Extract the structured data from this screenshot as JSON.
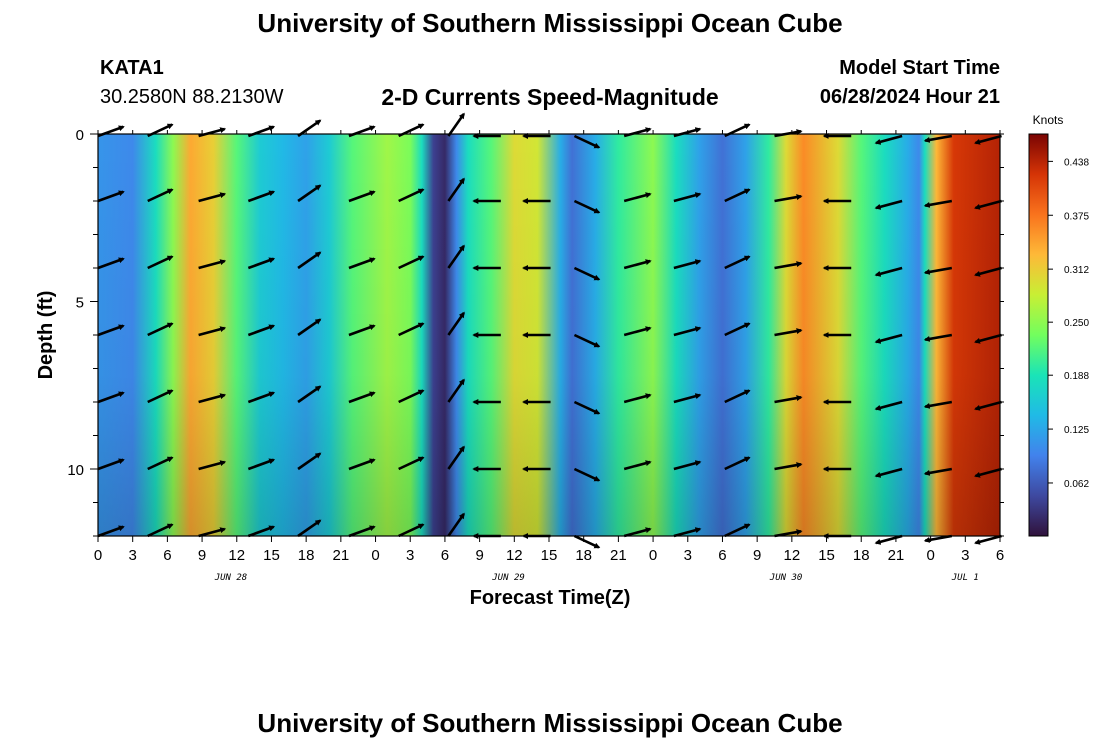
{
  "header": {
    "title": "University of Southern Mississippi Ocean Cube",
    "station_id": "KATA1",
    "station_coords": "30.2580N  88.2130W",
    "chart_title": "2-D Currents Speed-Magnitude",
    "model_label": "Model Start Time",
    "model_time": "06/28/2024 Hour 21"
  },
  "footer": {
    "title": "University of Southern Mississippi Ocean Cube"
  },
  "chart_data": {
    "type": "heatmap",
    "title": "2-D Currents Speed-Magnitude",
    "xlabel": "Forecast Time(Z)",
    "ylabel": "Depth (ft)",
    "x_range_hours": [
      0,
      78
    ],
    "ylim": [
      0,
      12
    ],
    "y_ticks": [
      "0",
      "5",
      "10"
    ],
    "y_tick_values": [
      0,
      5,
      10
    ],
    "x_tick_labels": [
      "0",
      "3",
      "6",
      "9",
      "12",
      "15",
      "18",
      "21",
      "0",
      "3",
      "6",
      "9",
      "12",
      "15",
      "18",
      "21",
      "0",
      "3",
      "6",
      "9",
      "12",
      "15",
      "18",
      "21",
      "0",
      "3",
      "6"
    ],
    "date_labels": [
      {
        "label": "JUN 28",
        "hour": 11.5
      },
      {
        "label": "JUN 29",
        "hour": 35.5
      },
      {
        "label": "JUN 30",
        "hour": 59.5
      },
      {
        "label": "JUL 1",
        "hour": 75
      }
    ],
    "colorbar": {
      "label": "Knots",
      "min": 0,
      "max": 0.47,
      "ticks": [
        "0.062",
        "0.125",
        "0.188",
        "0.250",
        "0.312",
        "0.375",
        "0.438"
      ],
      "tick_values": [
        0.062,
        0.125,
        0.188,
        0.25,
        0.312,
        0.375,
        0.438
      ]
    },
    "speed_by_hour": [
      {
        "h": 0,
        "v": 0.11
      },
      {
        "h": 3,
        "v": 0.1
      },
      {
        "h": 5,
        "v": 0.18
      },
      {
        "h": 6.5,
        "v": 0.25
      },
      {
        "h": 8,
        "v": 0.34
      },
      {
        "h": 10,
        "v": 0.31
      },
      {
        "h": 12,
        "v": 0.22
      },
      {
        "h": 14,
        "v": 0.16
      },
      {
        "h": 16,
        "v": 0.14
      },
      {
        "h": 18,
        "v": 0.12
      },
      {
        "h": 20,
        "v": 0.16
      },
      {
        "h": 22,
        "v": 0.22
      },
      {
        "h": 25,
        "v": 0.26
      },
      {
        "h": 27,
        "v": 0.24
      },
      {
        "h": 28,
        "v": 0.18
      },
      {
        "h": 29,
        "v": 0.04
      },
      {
        "h": 30,
        "v": 0.02
      },
      {
        "h": 31,
        "v": 0.1
      },
      {
        "h": 32,
        "v": 0.18
      },
      {
        "h": 34,
        "v": 0.22
      },
      {
        "h": 36,
        "v": 0.3
      },
      {
        "h": 38,
        "v": 0.29
      },
      {
        "h": 40,
        "v": 0.13
      },
      {
        "h": 41,
        "v": 0.08
      },
      {
        "h": 43,
        "v": 0.13
      },
      {
        "h": 45,
        "v": 0.2
      },
      {
        "h": 48,
        "v": 0.25
      },
      {
        "h": 50,
        "v": 0.18
      },
      {
        "h": 52,
        "v": 0.12
      },
      {
        "h": 54,
        "v": 0.08
      },
      {
        "h": 56,
        "v": 0.12
      },
      {
        "h": 58,
        "v": 0.2
      },
      {
        "h": 59.5,
        "v": 0.3
      },
      {
        "h": 61,
        "v": 0.36
      },
      {
        "h": 64,
        "v": 0.3
      },
      {
        "h": 66,
        "v": 0.22
      },
      {
        "h": 68,
        "v": 0.18
      },
      {
        "h": 70,
        "v": 0.13
      },
      {
        "h": 71,
        "v": 0.1
      },
      {
        "h": 71.5,
        "v": 0.18
      },
      {
        "h": 72.5,
        "v": 0.33
      },
      {
        "h": 74,
        "v": 0.42
      },
      {
        "h": 78,
        "v": 0.44
      }
    ],
    "vectors": {
      "depths_ft": [
        0,
        2,
        4,
        6,
        8,
        10,
        12
      ],
      "columns": [
        {
          "hour": 0,
          "angle_deg": 20
        },
        {
          "hour": 4.3,
          "angle_deg": 25
        },
        {
          "hour": 8.7,
          "angle_deg": 15
        },
        {
          "hour": 13,
          "angle_deg": 20
        },
        {
          "hour": 17.3,
          "angle_deg": 35
        },
        {
          "hour": 21.7,
          "angle_deg": 20
        },
        {
          "hour": 26,
          "angle_deg": 25
        },
        {
          "hour": 30.3,
          "angle_deg": 55
        },
        {
          "hour": 32.5,
          "angle_deg": 180
        },
        {
          "hour": 36.8,
          "angle_deg": 180
        },
        {
          "hour": 41.2,
          "angle_deg": -25
        },
        {
          "hour": 45.5,
          "angle_deg": 15
        },
        {
          "hour": 49.8,
          "angle_deg": 15
        },
        {
          "hour": 54.2,
          "angle_deg": 25
        },
        {
          "hour": 58.5,
          "angle_deg": 10
        },
        {
          "hour": 62.8,
          "angle_deg": 180
        },
        {
          "hour": 67.2,
          "angle_deg": 195
        },
        {
          "hour": 71.5,
          "angle_deg": 190
        },
        {
          "hour": 75.8,
          "angle_deg": 195
        }
      ]
    }
  }
}
